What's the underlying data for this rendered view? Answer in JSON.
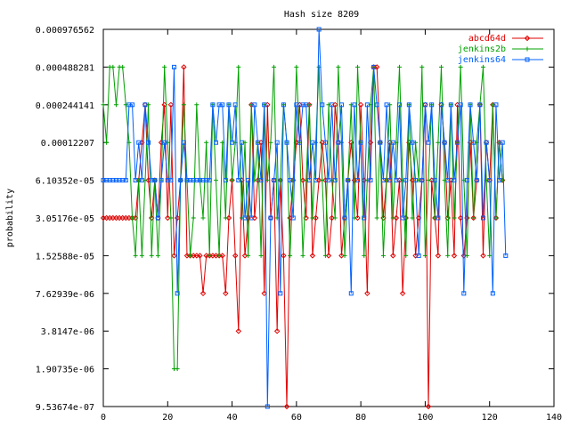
{
  "chart_data": {
    "type": "line",
    "title": "Hash size 8209",
    "xlabel": "",
    "ylabel": "probability",
    "x_scale": "linear",
    "y_scale": "log2",
    "xlim": [
      0,
      140
    ],
    "ylim": [
      9.53674e-07,
      0.000976562
    ],
    "x_ticks": [
      0,
      20,
      40,
      60,
      80,
      100,
      120,
      140
    ],
    "y_ticks": [
      {
        "value": 9.53674e-07,
        "label": "9.53674e-07"
      },
      {
        "value": 1.90735e-06,
        "label": "1.90735e-06"
      },
      {
        "value": 3.8147e-06,
        "label": "3.8147e-06"
      },
      {
        "value": 7.62939e-06,
        "label": "7.62939e-06"
      },
      {
        "value": 1.52588e-05,
        "label": "1.52588e-05"
      },
      {
        "value": 3.05176e-05,
        "label": "3.05176e-05"
      },
      {
        "value": 6.10352e-05,
        "label": "6.10352e-05"
      },
      {
        "value": 0.00012207,
        "label": "0.00012207"
      },
      {
        "value": 0.000244141,
        "label": "0.000244141"
      },
      {
        "value": 0.000488281,
        "label": "0.000488281"
      },
      {
        "value": 0.000976562,
        "label": "0.000976562"
      }
    ],
    "grid": false,
    "legend_position": "top-right",
    "series": [
      {
        "name": "abcd64d",
        "color": "#e00000",
        "marker": "diamond",
        "x_start": 0,
        "exponents": [
          -15,
          -15,
          -15,
          -15,
          -15,
          -15,
          -15,
          -15,
          -15,
          -15,
          -15,
          -14,
          -13,
          -12,
          -14,
          -15,
          -14,
          -15,
          -13,
          -12,
          -15,
          -12,
          -16,
          -15,
          -14,
          -11,
          -16,
          -16,
          -16,
          -16,
          -16,
          -17,
          -16,
          -16,
          -16,
          -16,
          -16,
          -16,
          -17,
          -15,
          -14,
          -16,
          -18,
          -14,
          -16,
          -15,
          -12,
          -15,
          -14,
          -13,
          -17,
          -12,
          -15,
          -14,
          -18,
          -14,
          -16,
          -20,
          -15,
          -14,
          -13,
          -12,
          -14,
          -15,
          -12,
          -16,
          -15,
          -14,
          -13,
          -14,
          -16,
          -15,
          -12,
          -13,
          -16,
          -15,
          -14,
          -13,
          -14,
          -15,
          -12,
          -14,
          -17,
          -13,
          -11,
          -11,
          -13,
          -15,
          -14,
          -13,
          -16,
          -15,
          -14,
          -17,
          -15,
          -13,
          -14,
          -16,
          -15,
          -14,
          -12,
          -20,
          -14,
          -15,
          -16,
          -12,
          -13,
          -15,
          -14,
          -16,
          -12,
          -15,
          -16,
          -15,
          -13,
          -15,
          -14,
          -12,
          -16,
          -13,
          -14,
          -12,
          -15,
          -13,
          -14
        ]
      },
      {
        "name": "jenkins2b",
        "color": "#00a000",
        "marker": "plus",
        "x_start": 0,
        "exponents": [
          -12,
          -13,
          -11,
          -11,
          -12,
          -11,
          -11,
          -12,
          -13,
          -15,
          -16,
          -14,
          -16,
          -14,
          -12,
          -16,
          -14,
          -16,
          -14,
          -11,
          -13,
          -15,
          -19,
          -19,
          -14,
          -12,
          -14,
          -16,
          -15,
          -12,
          -14,
          -15,
          -13,
          -16,
          -12,
          -14,
          -16,
          -13,
          -15,
          -12,
          -14,
          -13,
          -11,
          -15,
          -13,
          -16,
          -12,
          -14,
          -13,
          -16,
          -12,
          -14,
          -13,
          -11,
          -15,
          -14,
          -12,
          -13,
          -16,
          -14,
          -11,
          -13,
          -16,
          -14,
          -12,
          -15,
          -13,
          -11,
          -14,
          -16,
          -12,
          -14,
          -15,
          -11,
          -13,
          -16,
          -14,
          -12,
          -15,
          -11,
          -13,
          -16,
          -14,
          -12,
          -11,
          -15,
          -13,
          -16,
          -14,
          -12,
          -15,
          -13,
          -11,
          -14,
          -16,
          -12,
          -15,
          -13,
          -14,
          -11,
          -16,
          -14,
          -12,
          -15,
          -13,
          -11,
          -14,
          -16,
          -12,
          -15,
          -13,
          -11,
          -14,
          -16,
          -12,
          -15,
          -13,
          -12,
          -11,
          -14,
          -16,
          -12,
          -15,
          -13,
          -14
        ]
      },
      {
        "name": "jenkins64",
        "color": "#0060ff",
        "marker": "square",
        "x_start": 0,
        "exponents": [
          -14,
          -14,
          -14,
          -14,
          -14,
          -14,
          -14,
          -14,
          -12,
          -12,
          -14,
          -13,
          -14,
          -12,
          -13,
          -14,
          -14,
          -15,
          -14,
          -13,
          -14,
          -14,
          -11,
          -17,
          -14,
          -13,
          -14,
          -14,
          -14,
          -14,
          -14,
          -14,
          -14,
          -14,
          -12,
          -13,
          -12,
          -12,
          -14,
          -12,
          -13,
          -12,
          -14,
          -13,
          -15,
          -14,
          -15,
          -12,
          -13,
          -14,
          -12,
          -20,
          -15,
          -14,
          -13,
          -17,
          -12,
          -13,
          -14,
          -15,
          -12,
          -13,
          -12,
          -12,
          -14,
          -13,
          -14,
          -10,
          -12,
          -13,
          -14,
          -12,
          -14,
          -13,
          -12,
          -15,
          -14,
          -17,
          -12,
          -14,
          -13,
          -15,
          -12,
          -14,
          -11,
          -12,
          -13,
          -14,
          -12,
          -14,
          -13,
          -14,
          -12,
          -15,
          -14,
          -12,
          -13,
          -14,
          -16,
          -14,
          -12,
          -13,
          -12,
          -14,
          -15,
          -12,
          -13,
          -14,
          -12,
          -14,
          -13,
          -12,
          -17,
          -14,
          -12,
          -13,
          -14,
          -12,
          -15,
          -13,
          -14,
          -17,
          -12,
          -14,
          -13,
          -16
        ]
      }
    ]
  }
}
